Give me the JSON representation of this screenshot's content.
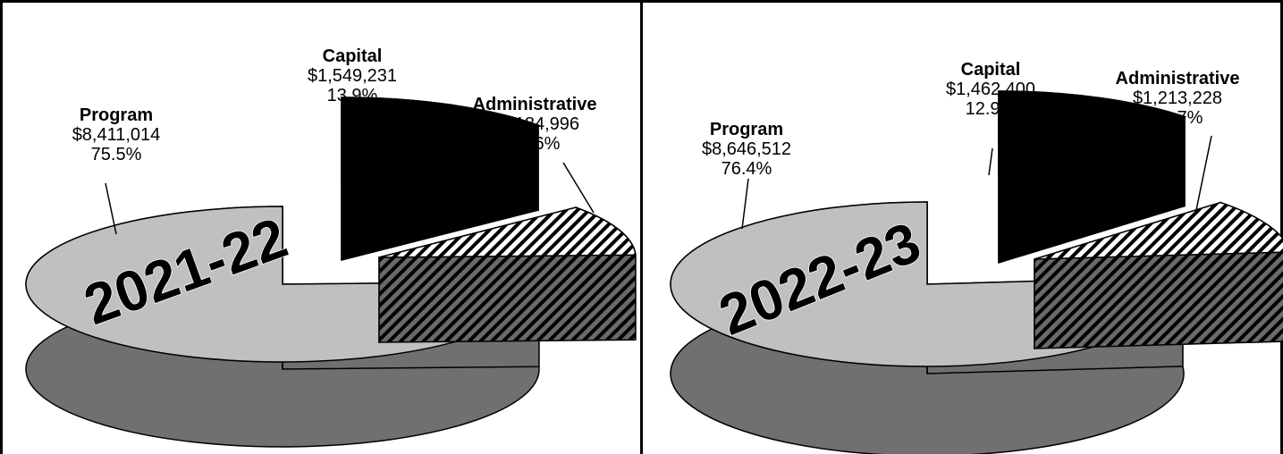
{
  "chart_data": [
    {
      "type": "pie",
      "title": "2021-22",
      "slices": [
        {
          "label": "Program",
          "amount": "$8,411,014",
          "percent": "75.5%",
          "value": 75.5,
          "fill": "light-gray"
        },
        {
          "label": "Capital",
          "amount": "$1,549,231",
          "percent": "13.9%",
          "value": 13.9,
          "fill": "black"
        },
        {
          "label": "Administrative",
          "amount": "$1,184,996",
          "percent": "10.6%",
          "value": 10.6,
          "fill": "diagonal-hatch"
        }
      ]
    },
    {
      "type": "pie",
      "title": "2022-23",
      "slices": [
        {
          "label": "Program",
          "amount": "$8,646,512",
          "percent": "76.4%",
          "value": 76.4,
          "fill": "light-gray"
        },
        {
          "label": "Capital",
          "amount": "$1,462,400",
          "percent": "12.9%",
          "value": 12.9,
          "fill": "black"
        },
        {
          "label": "Administrative",
          "amount": "$1,213,228",
          "percent": "10.7%",
          "value": 10.7,
          "fill": "diagonal-hatch"
        }
      ]
    }
  ],
  "colors": {
    "program_top": "#c0c0c0",
    "program_side": "#707070",
    "capital": "#000000",
    "admin_top": "#ffffff",
    "admin_side": "#606060",
    "hatch": "#000000"
  }
}
